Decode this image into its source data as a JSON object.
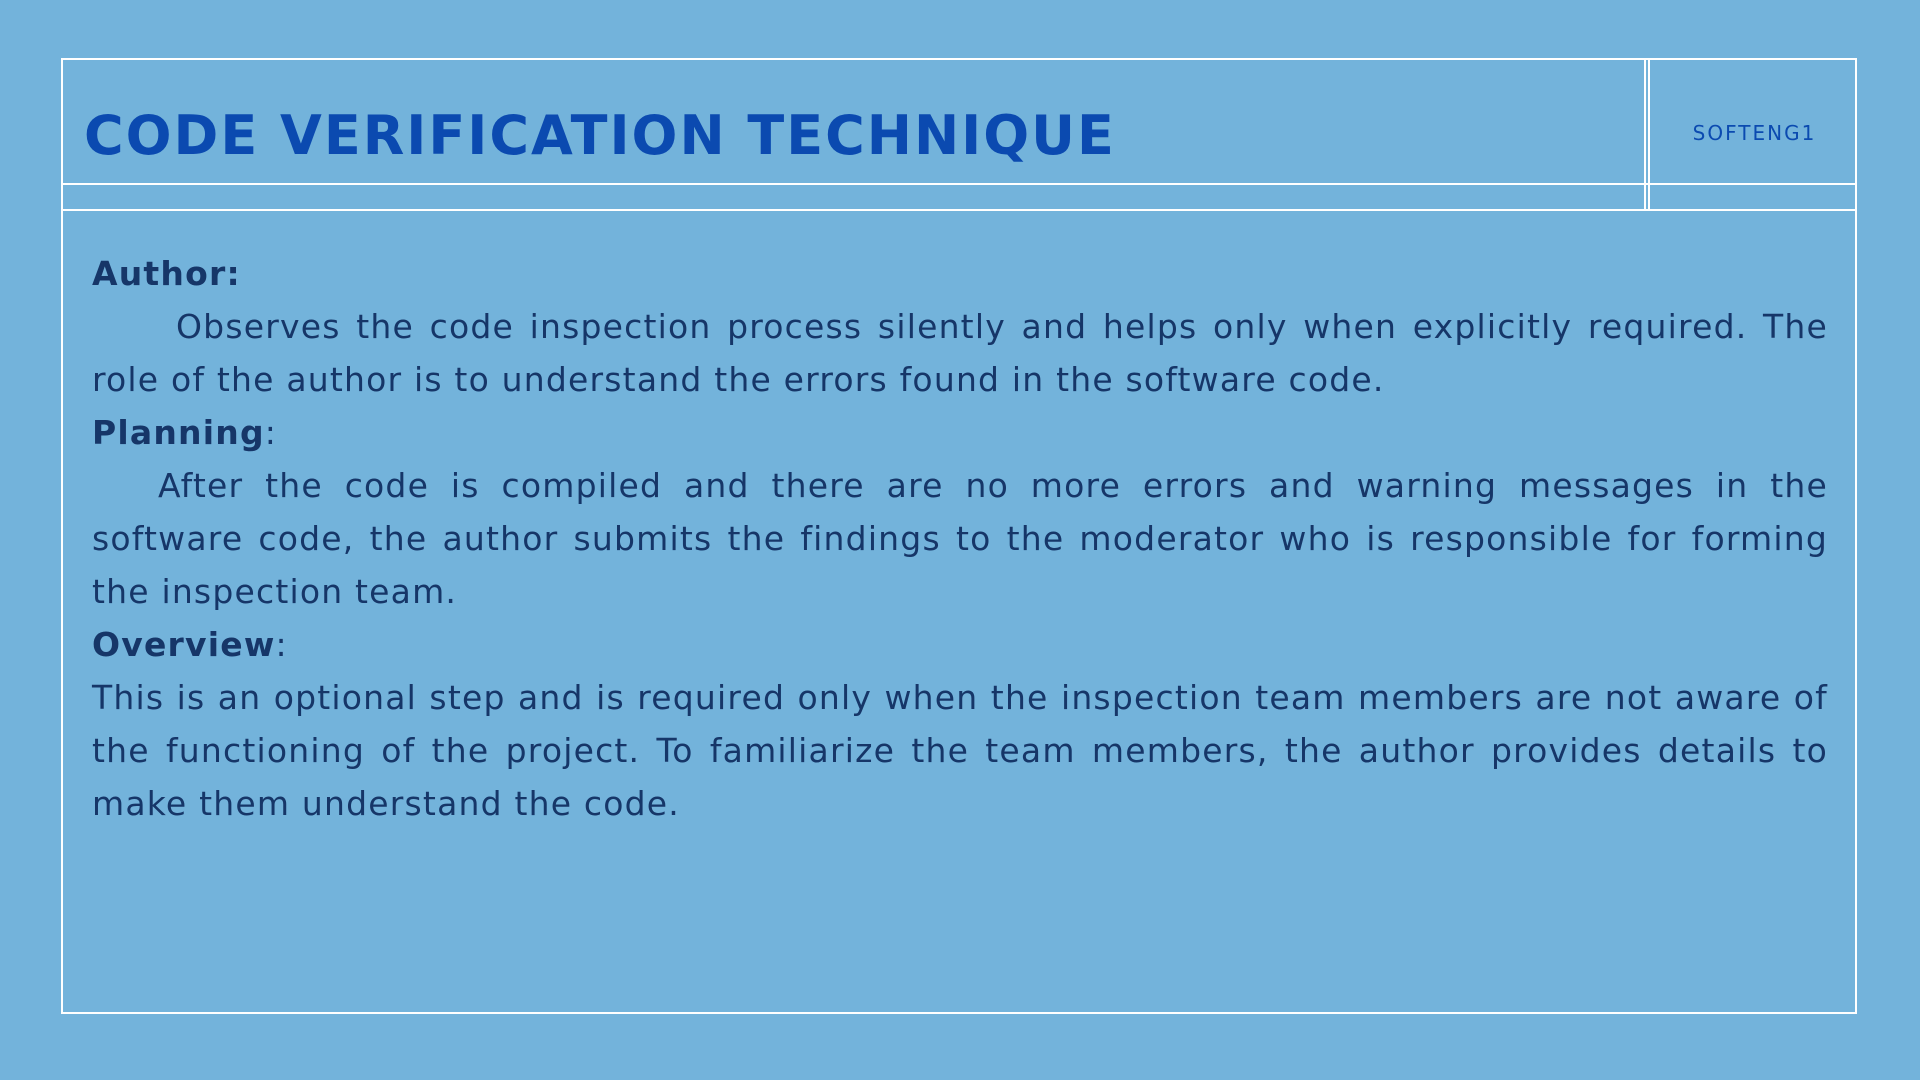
{
  "slide": {
    "title": "CODE VERIFICATION TECHNIQUE",
    "tag": "SOFTENG1"
  },
  "sections": [
    {
      "heading": "Author",
      "punct": ":",
      "body": "Observes the code inspection process silently and helps only when explicitly required. The role of the author is to understand the errors found in the software code."
    },
    {
      "heading": "Planning",
      "punct": ":",
      "body": "After the code is compiled and there are no more errors and warning messages in the software code, the author submits the findings to the moderator who is responsible for forming the inspection team."
    },
    {
      "heading": "Overview",
      "punct": ":",
      "body": "This is an optional step and is required only when the inspection team members are not aware of the functioning of the project. To familiarize the team members, the author provides details to make them understand the code."
    }
  ]
}
